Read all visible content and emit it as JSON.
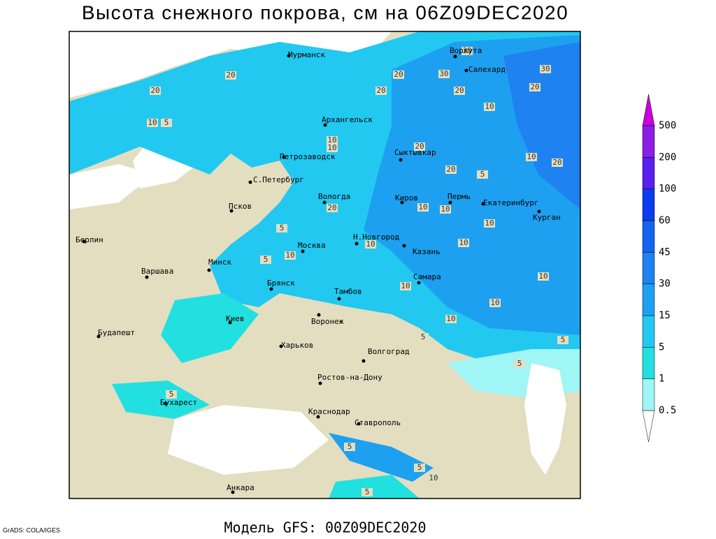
{
  "title": "Высота снежного покрова, см на 06Z09DEC2020",
  "footer": "Модель GFS: 00Z09DEC2020",
  "credit": "GrADS: COLA/IGES",
  "cities": [
    "Мурманск",
    "Воркута",
    "Салехард",
    "Архангельск",
    "Петрозаводск",
    "Сыктывкар",
    "С.Петербург",
    "Вологда",
    "Киров",
    "Пермь",
    "Екатеринбург",
    "Псков",
    "Курган",
    "Берлин",
    "Н.Новгород",
    "Москва",
    "Казань",
    "Минск",
    "Варшава",
    "Брянск",
    "Тамбов",
    "Самара",
    "Киев",
    "Воронеж",
    "Будапешт",
    "Харьков",
    "Волгоград",
    "Ростов-на-Дону",
    "Бухарест",
    "Краснодар",
    "Ставрополь",
    "Анкара"
  ],
  "contour_labels": [
    20,
    20,
    10,
    5,
    20,
    20,
    30,
    30,
    30,
    20,
    20,
    10,
    10,
    10,
    20,
    20,
    5,
    10,
    20,
    20,
    10,
    10,
    10,
    5,
    10,
    10,
    5,
    10,
    10,
    10,
    10,
    10,
    5,
    5,
    5,
    5,
    5,
    10,
    5,
    5
  ],
  "colorbar": {
    "levels": [
      0.5,
      1,
      5,
      15,
      30,
      45,
      60,
      100,
      200,
      500
    ],
    "colors": [
      "#ffffff",
      "#a0f5f5",
      "#22e0e0",
      "#22c8f0",
      "#1ea0f0",
      "#1e82f0",
      "#1464f0",
      "#0a3cf0",
      "#5a1ef0",
      "#8c1ee6",
      "#c800dc"
    ]
  }
}
